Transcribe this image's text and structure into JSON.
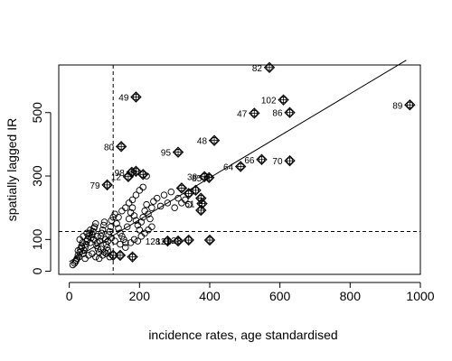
{
  "chart_data": {
    "type": "scatter",
    "title": "",
    "xlabel": "incidence rates, age standardised",
    "ylabel": "spatially lagged IR",
    "xlim": [
      -30,
      1000
    ],
    "ylim": [
      -10,
      650
    ],
    "x_ticks": [
      0,
      200,
      400,
      600,
      800,
      1000
    ],
    "y_ticks": [
      0,
      100,
      300,
      500
    ],
    "vline_x": 125,
    "hline_y": 125,
    "regression_line": {
      "x": [
        0,
        960
      ],
      "y": [
        30,
        665
      ]
    },
    "labeled_points": [
      {
        "label": "82",
        "x": 570,
        "y": 642
      },
      {
        "label": "49",
        "x": 190,
        "y": 549
      },
      {
        "label": "102",
        "x": 610,
        "y": 540
      },
      {
        "label": "47",
        "x": 527,
        "y": 498
      },
      {
        "label": "86",
        "x": 628,
        "y": 500
      },
      {
        "label": "89",
        "x": 970,
        "y": 524
      },
      {
        "label": "80",
        "x": 148,
        "y": 393
      },
      {
        "label": "48",
        "x": 413,
        "y": 412
      },
      {
        "label": "95",
        "x": 310,
        "y": 375
      },
      {
        "label": "66",
        "x": 548,
        "y": 352
      },
      {
        "label": "70",
        "x": 628,
        "y": 348
      },
      {
        "label": "64",
        "x": 488,
        "y": 330
      },
      {
        "label": "38",
        "x": 385,
        "y": 298
      },
      {
        "label": "98",
        "x": 178,
        "y": 312
      },
      {
        "label": "79",
        "x": 108,
        "y": 272
      },
      {
        "label": "12",
        "x": 168,
        "y": 298
      },
      {
        "label": "85",
        "x": 398,
        "y": 295
      },
      {
        "label": "61",
        "x": 378,
        "y": 213
      },
      {
        "label": "128",
        "x": 280,
        "y": 95
      },
      {
        "label": "121",
        "x": 310,
        "y": 95
      },
      {
        "label": "128",
        "x": 340,
        "y": 98
      }
    ],
    "unlabeled_diamond_points": [
      {
        "x": 190,
        "y": 315
      },
      {
        "x": 210,
        "y": 305
      },
      {
        "x": 320,
        "y": 262
      },
      {
        "x": 340,
        "y": 245
      },
      {
        "x": 360,
        "y": 255
      },
      {
        "x": 375,
        "y": 230
      },
      {
        "x": 375,
        "y": 192
      },
      {
        "x": 400,
        "y": 98
      },
      {
        "x": 180,
        "y": 45
      },
      {
        "x": 145,
        "y": 50
      },
      {
        "x": 125,
        "y": 50
      }
    ],
    "circle_points": [
      [
        10,
        20
      ],
      [
        15,
        25
      ],
      [
        18,
        30
      ],
      [
        20,
        35
      ],
      [
        22,
        40
      ],
      [
        25,
        50
      ],
      [
        28,
        45
      ],
      [
        30,
        60
      ],
      [
        32,
        70
      ],
      [
        35,
        80
      ],
      [
        38,
        90
      ],
      [
        40,
        55
      ],
      [
        42,
        65
      ],
      [
        45,
        75
      ],
      [
        48,
        85
      ],
      [
        50,
        95
      ],
      [
        52,
        100
      ],
      [
        55,
        110
      ],
      [
        58,
        120
      ],
      [
        60,
        130
      ],
      [
        62,
        105
      ],
      [
        65,
        115
      ],
      [
        68,
        125
      ],
      [
        70,
        135
      ],
      [
        72,
        140
      ],
      [
        75,
        150
      ],
      [
        78,
        80
      ],
      [
        80,
        90
      ],
      [
        82,
        70
      ],
      [
        85,
        60
      ],
      [
        88,
        95
      ],
      [
        90,
        110
      ],
      [
        92,
        120
      ],
      [
        95,
        130
      ],
      [
        98,
        145
      ],
      [
        100,
        155
      ],
      [
        102,
        100
      ],
      [
        105,
        85
      ],
      [
        108,
        75
      ],
      [
        110,
        65
      ],
      [
        112,
        115
      ],
      [
        115,
        125
      ],
      [
        118,
        140
      ],
      [
        120,
        160
      ],
      [
        125,
        170
      ],
      [
        130,
        180
      ],
      [
        135,
        150
      ],
      [
        140,
        135
      ],
      [
        145,
        120
      ],
      [
        150,
        110
      ],
      [
        155,
        100
      ],
      [
        160,
        90
      ],
      [
        165,
        140
      ],
      [
        170,
        165
      ],
      [
        175,
        185
      ],
      [
        180,
        200
      ],
      [
        185,
        175
      ],
      [
        190,
        160
      ],
      [
        195,
        145
      ],
      [
        200,
        130
      ],
      [
        205,
        155
      ],
      [
        210,
        170
      ],
      [
        215,
        190
      ],
      [
        220,
        210
      ],
      [
        225,
        180
      ],
      [
        230,
        165
      ],
      [
        235,
        200
      ],
      [
        240,
        220
      ],
      [
        250,
        230
      ],
      [
        260,
        205
      ],
      [
        270,
        240
      ],
      [
        280,
        215
      ],
      [
        290,
        250
      ],
      [
        300,
        200
      ],
      [
        310,
        230
      ],
      [
        320,
        215
      ],
      [
        330,
        225
      ],
      [
        340,
        210
      ],
      [
        30,
        100
      ],
      [
        40,
        110
      ],
      [
        50,
        120
      ],
      [
        60,
        90
      ],
      [
        70,
        100
      ],
      [
        80,
        110
      ],
      [
        90,
        70
      ],
      [
        100,
        60
      ],
      [
        110,
        95
      ],
      [
        120,
        105
      ],
      [
        45,
        40
      ],
      [
        55,
        50
      ],
      [
        65,
        55
      ],
      [
        75,
        45
      ],
      [
        85,
        40
      ],
      [
        95,
        50
      ],
      [
        105,
        55
      ],
      [
        115,
        45
      ],
      [
        25,
        65
      ],
      [
        35,
        75
      ],
      [
        140,
        170
      ],
      [
        150,
        190
      ],
      [
        160,
        200
      ],
      [
        170,
        215
      ],
      [
        180,
        225
      ],
      [
        190,
        240
      ],
      [
        200,
        255
      ],
      [
        210,
        265
      ],
      [
        220,
        300
      ],
      [
        130,
        95
      ],
      [
        145,
        85
      ],
      [
        160,
        75
      ],
      [
        175,
        90
      ],
      [
        185,
        100
      ],
      [
        195,
        95
      ],
      [
        205,
        110
      ],
      [
        215,
        120
      ],
      [
        225,
        130
      ],
      [
        235,
        140
      ]
    ]
  }
}
